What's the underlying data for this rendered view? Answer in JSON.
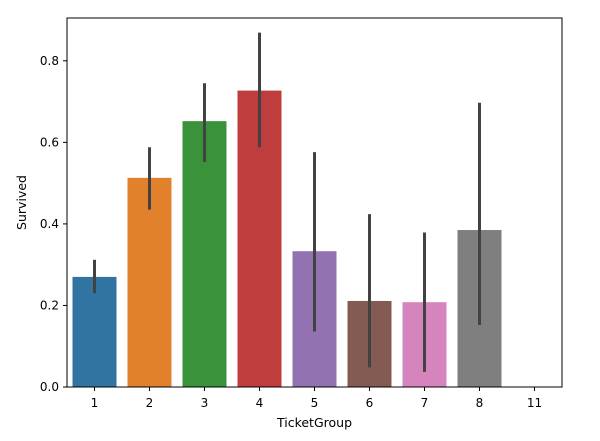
{
  "chart_data": {
    "type": "bar",
    "title": "",
    "xlabel": "TicketGroup",
    "ylabel": "Survived",
    "categories": [
      "1",
      "2",
      "3",
      "4",
      "5",
      "6",
      "7",
      "8",
      "11"
    ],
    "values": [
      0.27,
      0.513,
      0.652,
      0.727,
      0.333,
      0.211,
      0.208,
      0.385,
      0.0
    ],
    "error_low": [
      0.23,
      0.435,
      0.552,
      0.588,
      0.136,
      0.048,
      0.037,
      0.152,
      0.0
    ],
    "error_high": [
      0.312,
      0.588,
      0.745,
      0.869,
      0.576,
      0.424,
      0.379,
      0.697,
      0.0
    ],
    "colors": [
      "#3274a1",
      "#e1812c",
      "#3a923a",
      "#c03d3e",
      "#9372b2",
      "#845b53",
      "#d684bd",
      "#7f7f7f",
      "#a9aa35"
    ],
    "error_color": "#424242",
    "ylim": [
      0,
      0.905
    ],
    "yticks": [
      0.0,
      0.2,
      0.4,
      0.6,
      0.8
    ],
    "ytick_labels": [
      "0.0",
      "0.2",
      "0.4",
      "0.6",
      "0.8"
    ],
    "grid": false,
    "legend": "none"
  }
}
